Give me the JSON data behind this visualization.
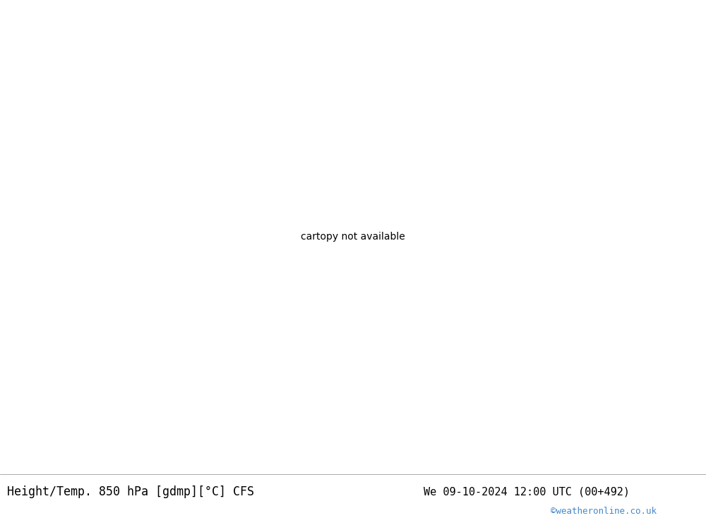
{
  "title_left": "Height/Temp. 850 hPa [gdmp][°C] CFS",
  "title_right": "We 09-10-2024 12:00 UTC (00+492)",
  "watermark": "©weatheronline.co.uk",
  "ocean_color": "#d8dde2",
  "land_color": "#e8e8e8",
  "warm_land_color": "#c8e8a0",
  "africa_color": "#e8e4d0",
  "bottom_bar_color": "#f0f0f0",
  "title_fontsize": 12,
  "watermark_color": "#4488cc"
}
